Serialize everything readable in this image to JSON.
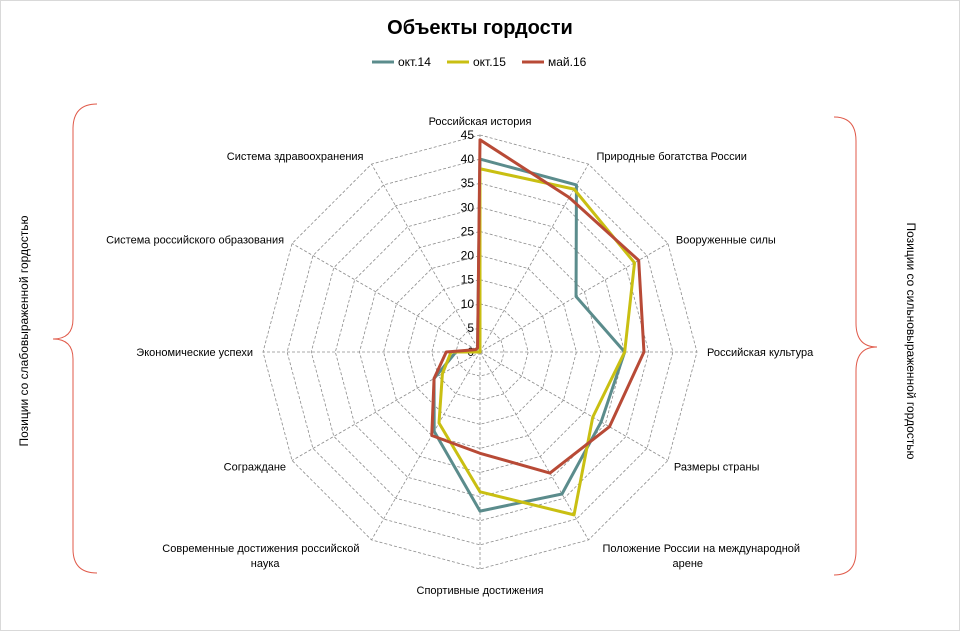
{
  "chart_data": {
    "type": "radar",
    "title": "Объекты гордости",
    "categories": [
      "Российская история",
      "Природные  богатства России",
      "Вооруженные  силы",
      "Российская культура",
      "Размеры страны",
      "Положение  России на международной арене",
      "Спортивные достижения",
      "Современные  достижения российской науки",
      "Сограждане",
      "Экономические  успехи",
      "Система российского образования",
      "Система здравоохранения"
    ],
    "rlim": [
      0,
      45
    ],
    "ticks": [
      "0",
      "5",
      "10",
      "15",
      "20",
      "25",
      "30",
      "35",
      "40",
      "45"
    ],
    "grid": true,
    "legend_position": "top",
    "series": [
      {
        "name": "окт.14",
        "color": "#5b8c8c",
        "values": [
          40,
          40,
          23,
          30,
          29,
          34,
          33,
          19,
          11,
          5,
          1,
          1
        ]
      },
      {
        "name": "окт.15",
        "color": "#c9bf12",
        "values": [
          38,
          39,
          37,
          30,
          27,
          39,
          29,
          17,
          9,
          6,
          0,
          0
        ]
      },
      {
        "name": "май.16",
        "color": "#b84a36",
        "values": [
          44,
          37,
          38,
          34,
          31,
          29,
          21,
          20,
          11,
          7,
          1,
          1
        ]
      }
    ],
    "side_labels": {
      "left": "Позиции со слабовыраженной гордостью",
      "right": "Позиции со сильновыраженной гордостью"
    },
    "bracket_color": "#e05a4a"
  }
}
